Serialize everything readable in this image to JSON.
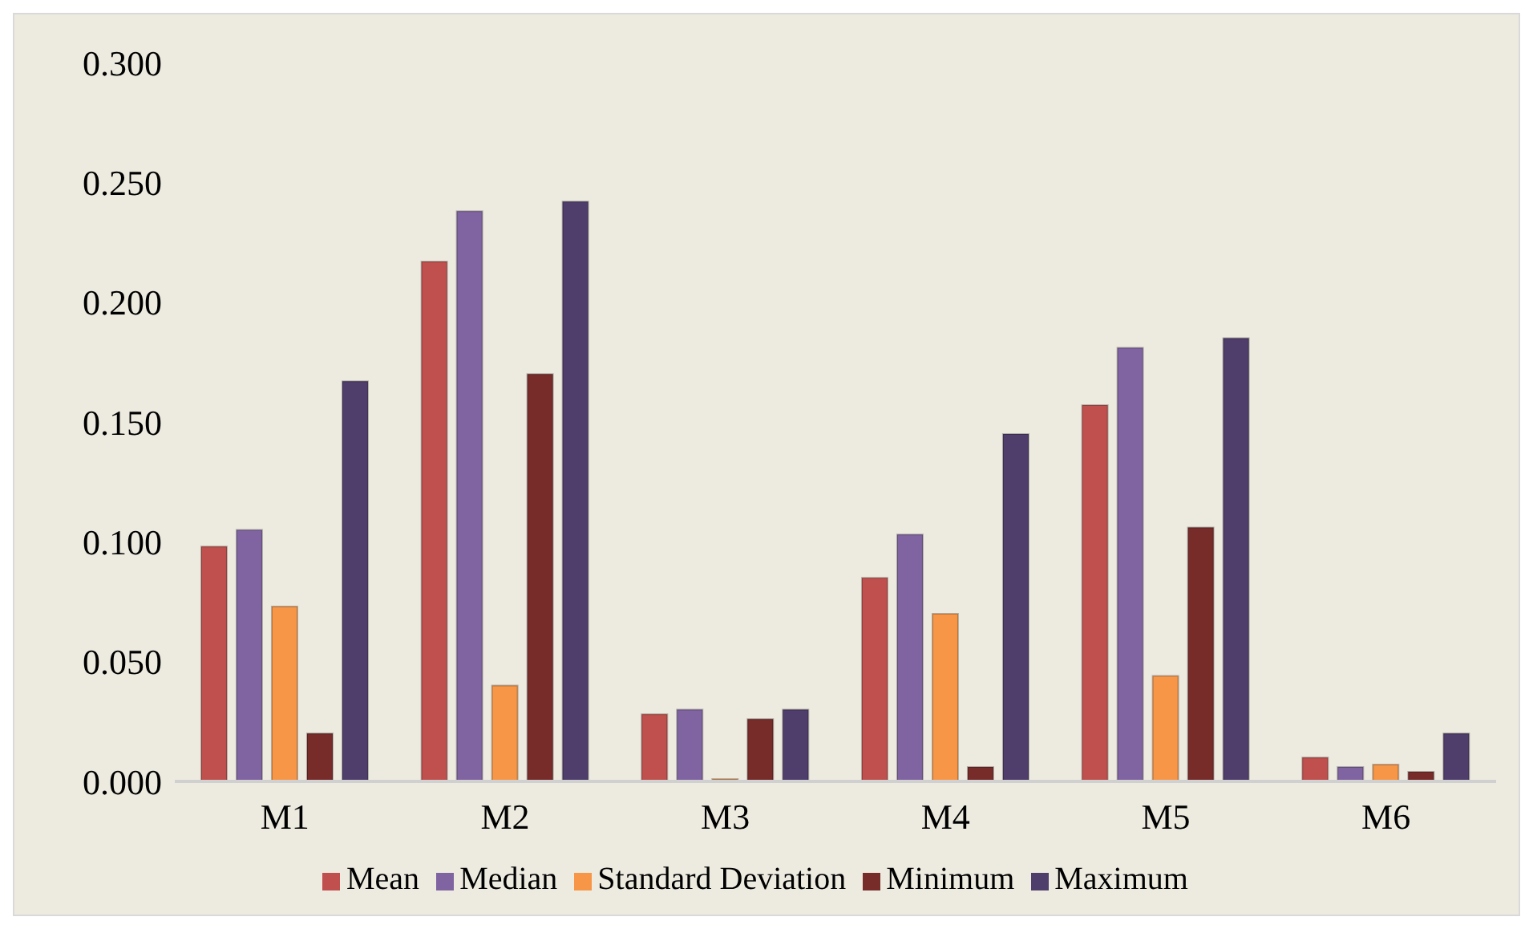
{
  "chart_data": {
    "type": "bar",
    "categories": [
      "M1",
      "M2",
      "M3",
      "M4",
      "M5",
      "M6"
    ],
    "series": [
      {
        "name": "Mean",
        "color": "#c0504d",
        "values": [
          0.098,
          0.217,
          0.028,
          0.085,
          0.157,
          0.01
        ]
      },
      {
        "name": "Median",
        "color": "#8064a2",
        "values": [
          0.105,
          0.238,
          0.03,
          0.103,
          0.181,
          0.006
        ]
      },
      {
        "name": "Standard Deviation",
        "color": "#f79646",
        "values": [
          0.073,
          0.04,
          0.001,
          0.07,
          0.044,
          0.007
        ]
      },
      {
        "name": "Minimum",
        "color": "#772c2a",
        "values": [
          0.02,
          0.17,
          0.026,
          0.006,
          0.106,
          0.004
        ]
      },
      {
        "name": "Maximum",
        "color": "#4f3d6b",
        "values": [
          0.167,
          0.242,
          0.03,
          0.145,
          0.185,
          0.02
        ]
      }
    ],
    "ylim": [
      0,
      0.3
    ],
    "yticks": [
      {
        "value": 0,
        "label": "0.000"
      },
      {
        "value": 0.05,
        "label": "0.050"
      },
      {
        "value": 0.1,
        "label": "0.100"
      },
      {
        "value": 0.15,
        "label": "0.150"
      },
      {
        "value": 0.2,
        "label": "0.200"
      },
      {
        "value": 0.25,
        "label": "0.250"
      },
      {
        "value": 0.3,
        "label": "0.300"
      }
    ],
    "grid": false,
    "legend": "bottom"
  }
}
